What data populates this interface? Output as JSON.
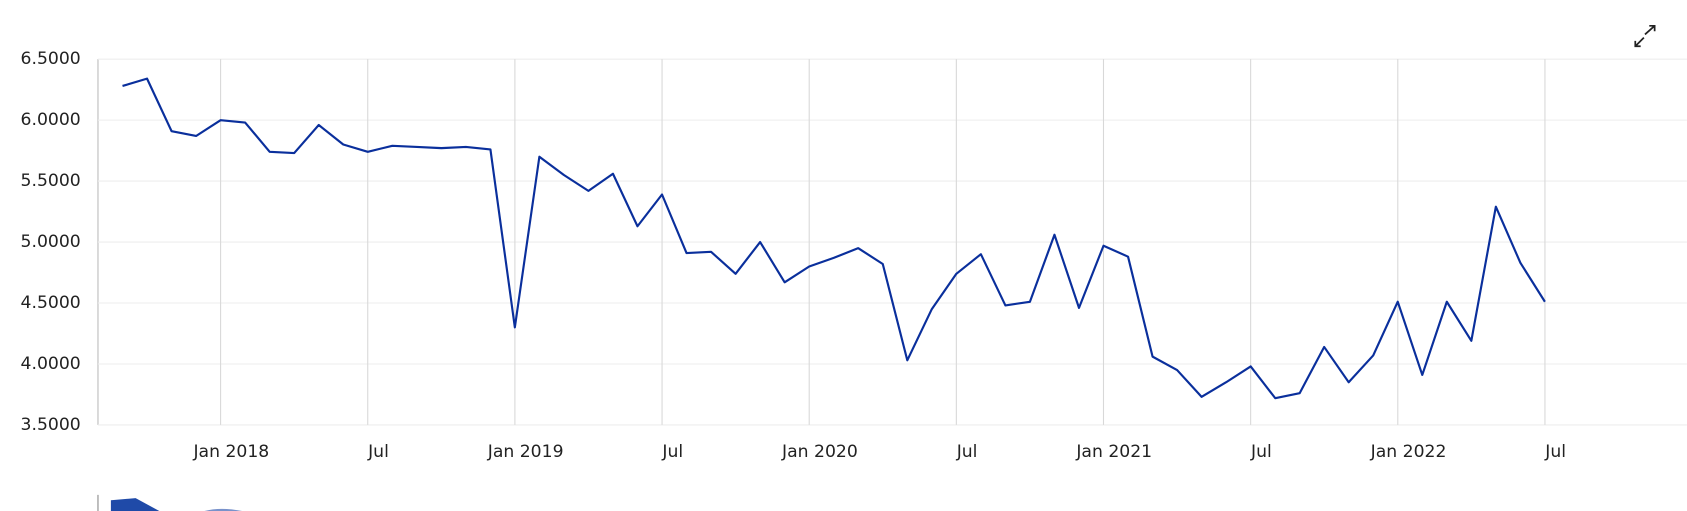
{
  "chart_data": {
    "type": "line",
    "x": [
      "2017-09",
      "2017-10",
      "2017-11",
      "2017-12",
      "2018-01",
      "2018-02",
      "2018-03",
      "2018-04",
      "2018-05",
      "2018-06",
      "2018-07",
      "2018-08",
      "2018-09",
      "2018-10",
      "2018-11",
      "2018-12",
      "2019-01",
      "2019-02",
      "2019-03",
      "2019-04",
      "2019-05",
      "2019-06",
      "2019-07",
      "2019-08",
      "2019-09",
      "2019-10",
      "2019-11",
      "2019-12",
      "2020-01",
      "2020-02",
      "2020-03",
      "2020-04",
      "2020-05",
      "2020-06",
      "2020-07",
      "2020-08",
      "2020-09",
      "2020-10",
      "2020-11",
      "2020-12",
      "2021-01",
      "2021-02",
      "2021-03",
      "2021-04",
      "2021-05",
      "2021-06",
      "2021-07",
      "2021-08",
      "2021-09",
      "2021-10",
      "2021-11",
      "2021-12",
      "2022-01",
      "2022-02",
      "2022-03",
      "2022-04",
      "2022-05",
      "2022-06",
      "2022-07"
    ],
    "values": [
      6.28,
      6.34,
      5.91,
      5.87,
      6.0,
      5.98,
      5.74,
      5.73,
      5.96,
      5.8,
      5.74,
      5.79,
      5.78,
      5.77,
      5.78,
      5.76,
      4.3,
      5.7,
      5.55,
      5.42,
      5.56,
      5.13,
      5.39,
      4.91,
      4.92,
      4.74,
      5.0,
      4.67,
      4.8,
      4.87,
      4.95,
      4.82,
      4.03,
      4.45,
      4.74,
      4.9,
      4.48,
      4.51,
      5.06,
      4.46,
      4.97,
      4.88,
      4.06,
      3.95,
      3.73,
      3.85,
      3.98,
      3.72,
      3.76,
      4.14,
      3.85,
      4.07,
      4.51,
      3.91,
      4.51,
      4.19,
      5.29,
      4.83,
      4.51
    ],
    "color": "#0a2f9c",
    "xlim": [
      "2017-08",
      "2022-12"
    ],
    "xticks": [
      {
        "value": "2018-01",
        "label": "Jan 2018"
      },
      {
        "value": "2018-07",
        "label": "Jul"
      },
      {
        "value": "2019-01",
        "label": "Jan 2019"
      },
      {
        "value": "2019-07",
        "label": "Jul"
      },
      {
        "value": "2020-01",
        "label": "Jan 2020"
      },
      {
        "value": "2020-07",
        "label": "Jul"
      },
      {
        "value": "2021-01",
        "label": "Jan 2021"
      },
      {
        "value": "2021-07",
        "label": "Jul"
      },
      {
        "value": "2022-01",
        "label": "Jan 2022"
      },
      {
        "value": "2022-07",
        "label": "Jul"
      }
    ],
    "ylim": [
      3.5,
      6.5
    ],
    "yticks": [
      {
        "value": 3.5,
        "label": "3.5000"
      },
      {
        "value": 4,
        "label": "4.0000"
      },
      {
        "value": 4.5,
        "label": "4.5000"
      },
      {
        "value": 5,
        "label": "5.0000"
      },
      {
        "value": 5.5,
        "label": "5.5000"
      },
      {
        "value": 6,
        "label": "6.0000"
      },
      {
        "value": 6.5,
        "label": "6.5000"
      }
    ],
    "grid": true
  }
}
